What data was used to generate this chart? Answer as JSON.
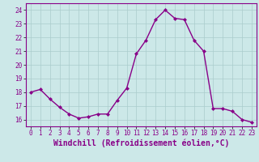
{
  "x": [
    0,
    1,
    2,
    3,
    4,
    5,
    6,
    7,
    8,
    9,
    10,
    11,
    12,
    13,
    14,
    15,
    16,
    17,
    18,
    19,
    20,
    21,
    22,
    23
  ],
  "y": [
    18.0,
    18.2,
    17.5,
    16.9,
    16.4,
    16.1,
    16.2,
    16.4,
    16.4,
    17.4,
    18.3,
    20.8,
    21.8,
    23.3,
    24.0,
    23.4,
    23.3,
    21.8,
    21.0,
    16.8,
    16.8,
    16.6,
    16.0,
    15.8
  ],
  "line_color": "#880088",
  "marker": "D",
  "marker_size": 2.0,
  "bg_color": "#cce8e8",
  "grid_color": "#aacccc",
  "xlabel": "Windchill (Refroidissement éolien,°C)",
  "ylabel": "",
  "ylim": [
    15.5,
    24.5
  ],
  "xlim": [
    -0.5,
    23.5
  ],
  "yticks": [
    16,
    17,
    18,
    19,
    20,
    21,
    22,
    23,
    24
  ],
  "xticks": [
    0,
    1,
    2,
    3,
    4,
    5,
    6,
    7,
    8,
    9,
    10,
    11,
    12,
    13,
    14,
    15,
    16,
    17,
    18,
    19,
    20,
    21,
    22,
    23
  ],
  "tick_color": "#880088",
  "tick_labelsize": 5.5,
  "xlabel_fontsize": 7.0,
  "line_width": 1.0
}
